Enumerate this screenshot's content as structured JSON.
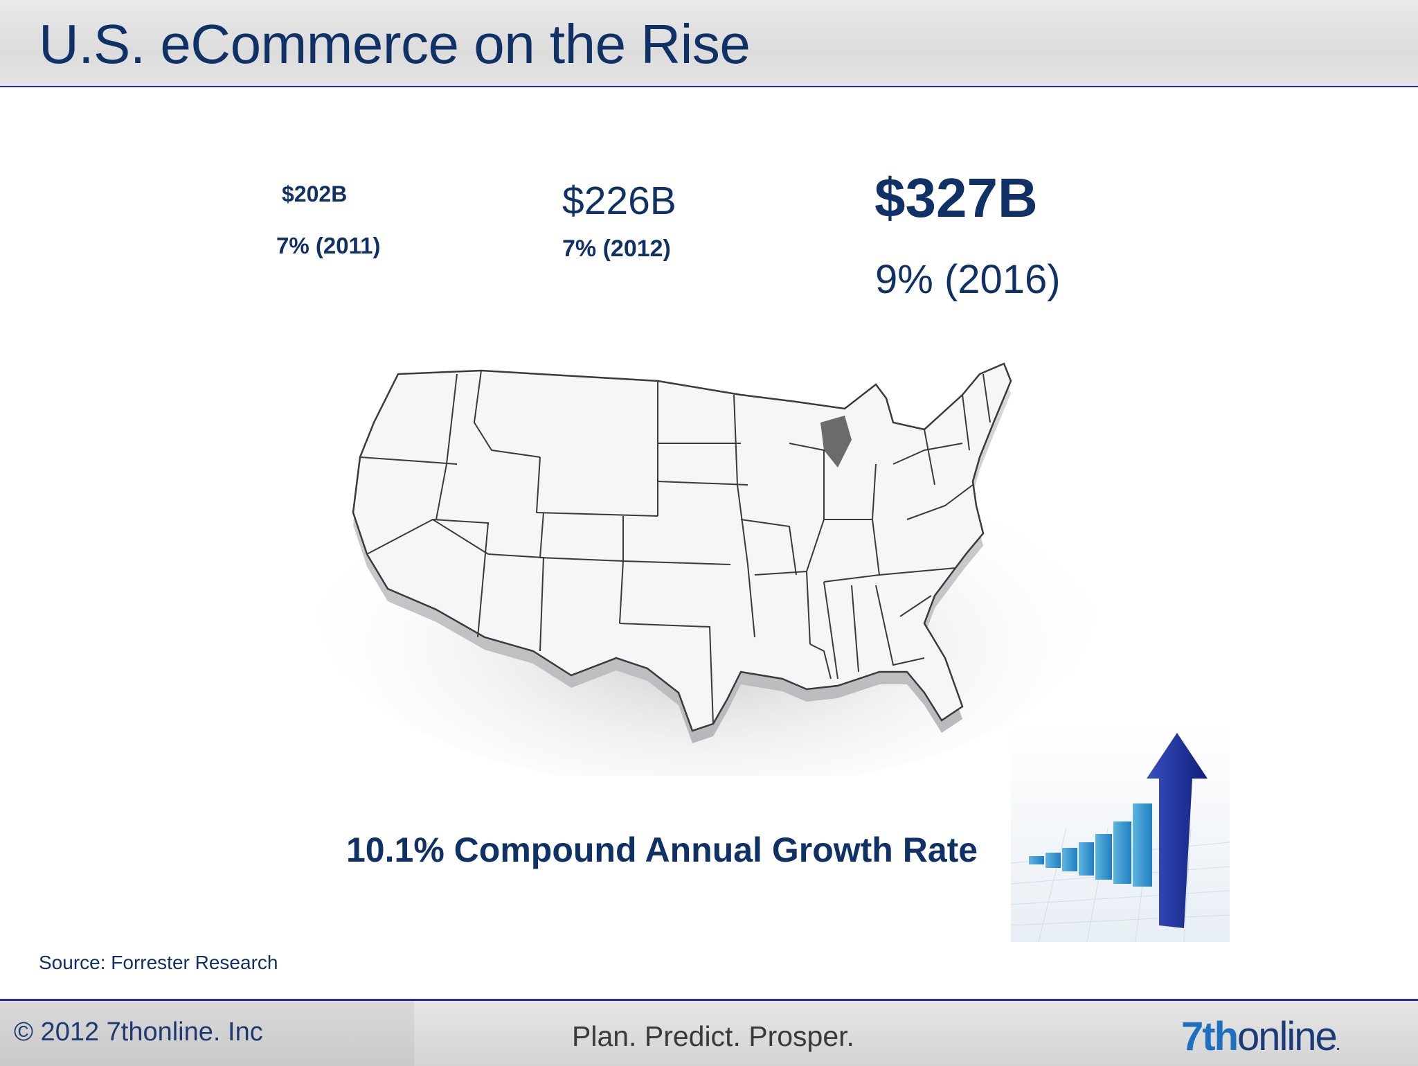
{
  "slide": {
    "title": "U.S. eCommerce on the Rise"
  },
  "stats": [
    {
      "value": "$202B",
      "pct": "7% (2011)"
    },
    {
      "value": "$226B",
      "pct": "7% (2012)"
    },
    {
      "value": "$327B",
      "pct": "9% (2016)"
    }
  ],
  "map": {
    "icon": "us-map-illustration"
  },
  "cagr": "10.1% Compound Annual Growth Rate",
  "growth_graphic": {
    "icon": "growth-bars-arrow-icon"
  },
  "source": "Source: Forrester Research",
  "footer": {
    "copyright": "© 2012  7thonline. Inc",
    "tagline": "Plan. Predict. Prosper.",
    "brand_part1": "7th",
    "brand_part2": "online",
    "brand_mark": "."
  },
  "colors": {
    "text_navy": "#0f3166",
    "rule_blue": "#2a2aa6",
    "brand_blue": "#1f6fc1"
  }
}
